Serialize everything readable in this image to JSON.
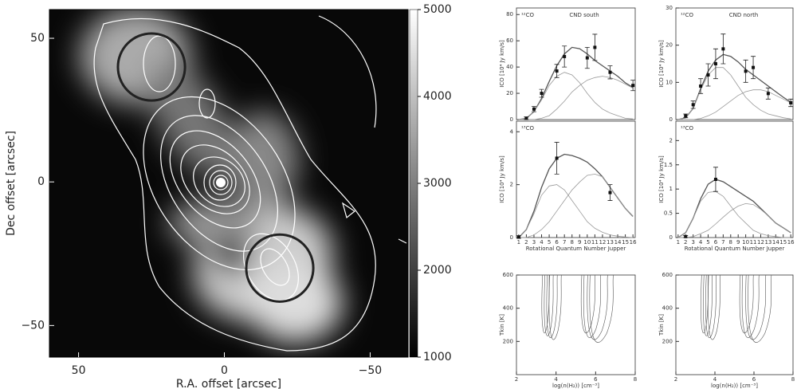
{
  "chart_data": [
    {
      "type": "image",
      "xlabel": "R.A. offset [arcsec]",
      "ylabel": "Dec offset [arcsec]",
      "xlim": [
        60,
        -63
      ],
      "ylim": [
        -61,
        60
      ],
      "xticks": [
        50,
        0,
        {
          "value": -50,
          "label": "−50"
        }
      ],
      "yticks": [
        50,
        0,
        {
          "value": -50,
          "label": "−50"
        }
      ],
      "zlim": [
        1000,
        5000
      ],
      "zticks": [
        1000,
        2000,
        3000,
        4000,
        5000
      ],
      "circles": [
        {
          "x": 25,
          "y": 40,
          "r": 11.5
        },
        {
          "x": -19,
          "y": -30,
          "r": 11.5
        }
      ]
    },
    {
      "type": "line",
      "label": "¹²CO",
      "title": "CND south",
      "ylabel": "ICO [10⁴ Jy km/s]",
      "xlim": [
        0.7,
        16.3
      ],
      "ylim": [
        0,
        85
      ],
      "yticks": [
        0,
        20,
        40,
        60,
        80
      ],
      "points": {
        "x": [
          2,
          3,
          4,
          6,
          7,
          10,
          11,
          13,
          16
        ],
        "values": [
          1,
          8,
          20,
          37,
          48,
          47,
          55,
          36,
          26
        ],
        "errors": [
          1,
          2,
          3,
          5,
          8,
          8,
          10,
          5,
          4
        ]
      },
      "x": [
        1,
        2,
        3,
        4,
        5,
        6,
        7,
        8,
        9,
        10,
        11,
        12,
        13,
        14,
        15,
        16
      ],
      "series": [
        {
          "color": "#555",
          "values": [
            0,
            1,
            6,
            16,
            29,
            41,
            50,
            55,
            54,
            50,
            45,
            41,
            37,
            33,
            28,
            24.5
          ]
        },
        {
          "color": "#999",
          "values": [
            0,
            1,
            6,
            15,
            26,
            33,
            36,
            34,
            28,
            20,
            13,
            8,
            5,
            3,
            1,
            0.5
          ]
        },
        {
          "color": "#999",
          "values": [
            0,
            0,
            0,
            1,
            3,
            8,
            14,
            21,
            26,
            30,
            32,
            33,
            32,
            30,
            27,
            24
          ]
        }
      ]
    },
    {
      "type": "line",
      "label": "¹²CO",
      "title": "CND north",
      "ylabel": "ICO [10⁴ Jy km/s]",
      "xlim": [
        0.7,
        16.3
      ],
      "ylim": [
        0,
        30
      ],
      "yticks": [
        0,
        10,
        20,
        30
      ],
      "points": {
        "x": [
          2,
          3,
          4,
          5,
          6,
          7,
          10,
          11,
          13,
          16
        ],
        "values": [
          1,
          4,
          9,
          12,
          15,
          19,
          13,
          14,
          7,
          4.5
        ],
        "errors": [
          0.5,
          1,
          2,
          3,
          4,
          4,
          3,
          3,
          1.5,
          1
        ]
      },
      "x": [
        1,
        2,
        3,
        4,
        5,
        6,
        7,
        8,
        9,
        10,
        11,
        12,
        13,
        14,
        15,
        16
      ],
      "series": [
        {
          "color": "#555",
          "values": [
            0,
            0.5,
            3,
            8.3,
            13,
            16,
            17.5,
            17,
            15.5,
            13.5,
            12,
            10.5,
            9,
            7.5,
            6,
            4.7
          ]
        },
        {
          "color": "#999",
          "values": [
            0,
            0.5,
            3,
            8,
            12,
            14,
            14,
            12,
            9,
            6,
            4,
            2.5,
            1.5,
            1,
            0.5,
            0.2
          ]
        },
        {
          "color": "#999",
          "values": [
            0,
            0,
            0,
            0.3,
            1,
            2,
            3.5,
            5,
            6.5,
            7.5,
            8,
            8,
            7.5,
            6.5,
            5.5,
            4.5
          ]
        }
      ]
    },
    {
      "type": "line",
      "label": "¹³CO",
      "ylabel": "ICO [10⁴ Jy km/s]",
      "xlabel": "Rotational Quantum Number Jupper",
      "xlim": [
        0.7,
        16.3
      ],
      "ylim": [
        0,
        4.4
      ],
      "yticks": [
        0,
        2,
        4
      ],
      "xticks": [
        1,
        2,
        3,
        4,
        5,
        6,
        7,
        8,
        9,
        10,
        11,
        12,
        13,
        14,
        15,
        16
      ],
      "points": {
        "x": [
          1,
          6,
          13
        ],
        "values": [
          0.02,
          3,
          1.7
        ],
        "errors": [
          0.05,
          0.6,
          0.3
        ]
      },
      "x": [
        1,
        2,
        3,
        4,
        5,
        6,
        7,
        8,
        9,
        10,
        11,
        12,
        13,
        14,
        15,
        16
      ],
      "series": [
        {
          "color": "#555",
          "values": [
            0,
            0.3,
            1,
            1.9,
            2.6,
            3,
            3.15,
            3.1,
            3,
            2.85,
            2.6,
            2.3,
            1.9,
            1.5,
            1.1,
            0.8
          ]
        },
        {
          "color": "#999",
          "values": [
            0,
            0.3,
            0.9,
            1.6,
            1.95,
            2,
            1.8,
            1.4,
            1,
            0.6,
            0.35,
            0.2,
            0.1,
            0.05,
            0.02,
            0
          ]
        },
        {
          "color": "#999",
          "values": [
            0,
            0,
            0.1,
            0.3,
            0.6,
            1,
            1.4,
            1.8,
            2.1,
            2.35,
            2.4,
            2.3,
            1.9,
            1.5,
            1.1,
            0.8
          ]
        }
      ]
    },
    {
      "type": "line",
      "label": "¹³CO",
      "ylabel": "ICO [10⁴ Jy km/s]",
      "xlabel": "Rotational Quantum Number Jupper",
      "xlim": [
        0.7,
        16.3
      ],
      "ylim": [
        0,
        2.4
      ],
      "yticks": [
        0,
        0.5,
        1,
        1.5,
        2
      ],
      "xticks": [
        1,
        2,
        3,
        4,
        5,
        6,
        7,
        8,
        9,
        10,
        11,
        12,
        13,
        14,
        15,
        16
      ],
      "points": {
        "x": [
          2,
          6
        ],
        "values": [
          0.02,
          1.2
        ],
        "errors": [
          0.02,
          0.25
        ]
      },
      "x": [
        1,
        2,
        3,
        4,
        5,
        6,
        7,
        8,
        9,
        10,
        11,
        12,
        13,
        14,
        15,
        16
      ],
      "series": [
        {
          "color": "#555",
          "values": [
            0,
            0.1,
            0.4,
            0.8,
            1.1,
            1.2,
            1.15,
            1.05,
            0.95,
            0.85,
            0.75,
            0.6,
            0.45,
            0.3,
            0.2,
            0.1
          ]
        },
        {
          "color": "#999",
          "values": [
            0,
            0.1,
            0.4,
            0.75,
            0.93,
            0.95,
            0.85,
            0.65,
            0.45,
            0.3,
            0.15,
            0.08,
            0.04,
            0.02,
            0,
            0
          ]
        },
        {
          "color": "#999",
          "values": [
            0,
            0,
            0.02,
            0.08,
            0.15,
            0.28,
            0.42,
            0.55,
            0.65,
            0.7,
            0.68,
            0.58,
            0.45,
            0.3,
            0.2,
            0.1
          ]
        }
      ]
    },
    {
      "type": "contour",
      "ylabel": "Tkin [K]",
      "xlabel": "log(n(H₂)) [cm⁻³]",
      "xlim": [
        2,
        8
      ],
      "ylim": [
        0,
        600
      ],
      "xticks": [
        2,
        4,
        6,
        8
      ],
      "yticks": [
        200,
        400,
        600
      ]
    },
    {
      "type": "contour",
      "ylabel": "Tkin [K]",
      "xlabel": "log(n(H₂)) [cm⁻³]",
      "xlim": [
        2,
        8
      ],
      "ylim": [
        0,
        600
      ],
      "xticks": [
        2,
        4,
        6,
        8
      ],
      "yticks": [
        200,
        400,
        600
      ]
    }
  ]
}
